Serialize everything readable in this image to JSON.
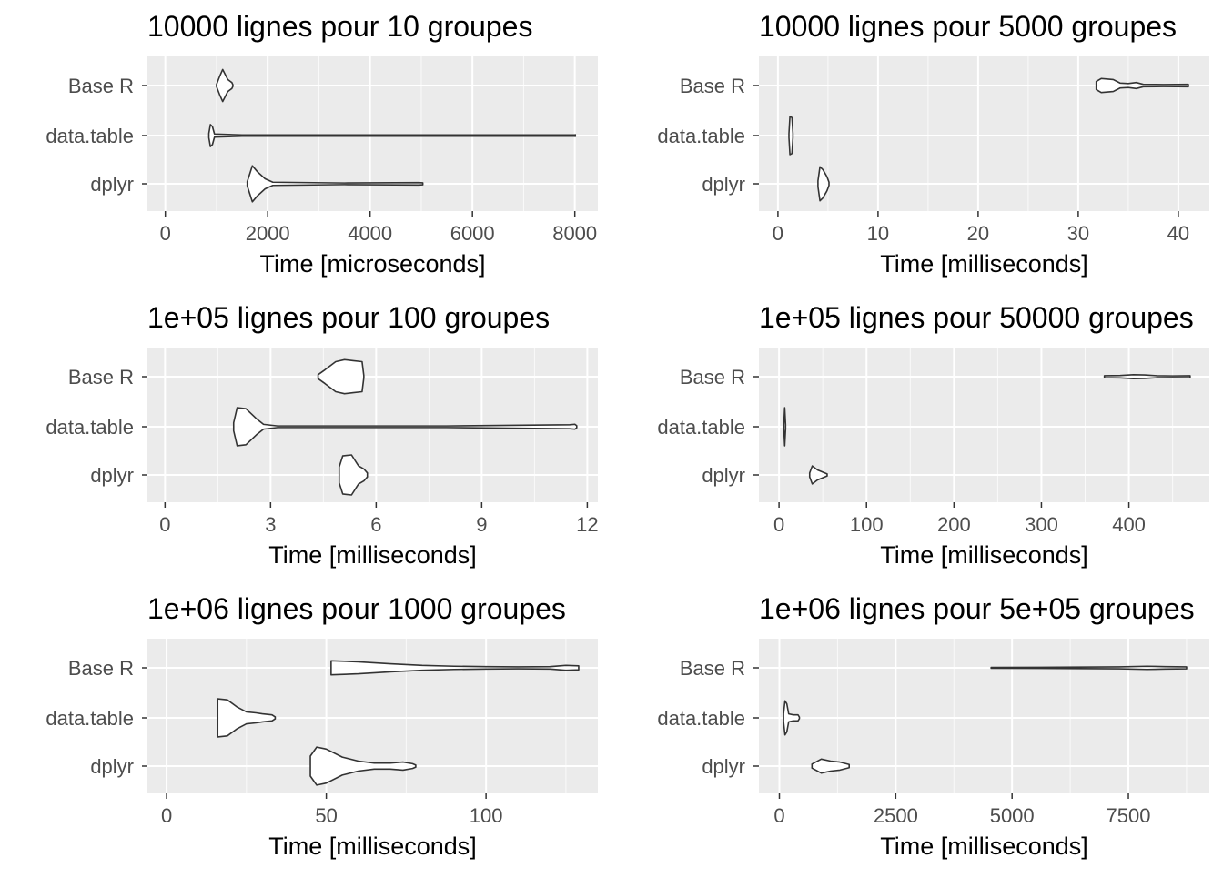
{
  "chart_data": [
    {
      "type": "violin",
      "title": "10000 lignes pour 10 groupes",
      "xlabel": "Time [microseconds]",
      "ylabel": "",
      "xlim": [
        -350,
        8450
      ],
      "xticks": [
        0,
        2000,
        4000,
        6000,
        8000
      ],
      "tick_labels": [
        "0",
        "2000",
        "4000",
        "6000",
        "8000"
      ],
      "categories": [
        "Base R",
        "data.table",
        "dplyr"
      ],
      "series": [
        {
          "name": "Base R",
          "profile": [
            [
              1000,
              0.05
            ],
            [
              1060,
              0.45
            ],
            [
              1120,
              0.8
            ],
            [
              1160,
              0.6
            ],
            [
              1220,
              0.3
            ],
            [
              1300,
              0.15
            ],
            [
              1320,
              0.04
            ]
          ]
        },
        {
          "name": "data.table",
          "profile": [
            [
              850,
              0.1
            ],
            [
              880,
              0.55
            ],
            [
              920,
              0.45
            ],
            [
              960,
              0.08
            ],
            [
              1500,
              0.03
            ],
            [
              4000,
              0.03
            ],
            [
              7990,
              0.03
            ],
            [
              8010,
              0.04
            ]
          ]
        },
        {
          "name": "dplyr",
          "profile": [
            [
              1600,
              0.1
            ],
            [
              1700,
              0.9
            ],
            [
              1800,
              0.6
            ],
            [
              1950,
              0.25
            ],
            [
              2100,
              0.08
            ],
            [
              3500,
              0.04
            ],
            [
              4950,
              0.06
            ],
            [
              5030,
              0.05
            ]
          ]
        }
      ]
    },
    {
      "type": "violin",
      "title": "10000 lignes pour 5000 groupes",
      "xlabel": "Time [milliseconds]",
      "ylabel": "",
      "xlim": [
        -1.9,
        43.1
      ],
      "xticks": [
        0,
        10,
        20,
        30,
        40
      ],
      "tick_labels": [
        "0",
        "10",
        "20",
        "30",
        "40"
      ],
      "categories": [
        "Base R",
        "data.table",
        "dplyr"
      ],
      "series": [
        {
          "name": "Base R",
          "profile": [
            [
              31.8,
              0.2
            ],
            [
              32.3,
              0.35
            ],
            [
              33.5,
              0.3
            ],
            [
              34.2,
              0.12
            ],
            [
              35.0,
              0.1
            ],
            [
              35.8,
              0.15
            ],
            [
              36.5,
              0.06
            ],
            [
              38.5,
              0.05
            ],
            [
              41.0,
              0.06
            ]
          ]
        },
        {
          "name": "data.table",
          "profile": [
            [
              1.1,
              0.1
            ],
            [
              1.2,
              0.95
            ],
            [
              1.4,
              0.9
            ],
            [
              1.5,
              0.1
            ]
          ]
        },
        {
          "name": "dplyr",
          "profile": [
            [
              4.0,
              0.15
            ],
            [
              4.2,
              0.85
            ],
            [
              4.5,
              0.7
            ],
            [
              4.9,
              0.35
            ],
            [
              5.1,
              0.08
            ]
          ]
        }
      ]
    },
    {
      "type": "violin",
      "title": "1e+05 lignes pour 100 groupes",
      "xlabel": "Time [milliseconds]",
      "ylabel": "",
      "xlim": [
        -0.5,
        12.3
      ],
      "xticks": [
        0,
        3,
        6,
        9,
        12
      ],
      "tick_labels": [
        "0",
        "3",
        "6",
        "9",
        "12"
      ],
      "categories": [
        "Base R",
        "data.table",
        "dplyr"
      ],
      "series": [
        {
          "name": "Base R",
          "profile": [
            [
              4.35,
              0.1
            ],
            [
              4.55,
              0.35
            ],
            [
              4.85,
              0.75
            ],
            [
              5.1,
              0.85
            ],
            [
              5.35,
              0.8
            ],
            [
              5.6,
              0.75
            ],
            [
              5.65,
              0.05
            ]
          ]
        },
        {
          "name": "data.table",
          "profile": [
            [
              1.95,
              0.2
            ],
            [
              2.05,
              0.95
            ],
            [
              2.3,
              0.9
            ],
            [
              2.6,
              0.4
            ],
            [
              2.8,
              0.12
            ],
            [
              3.2,
              0.04
            ],
            [
              8.0,
              0.04
            ],
            [
              11.5,
              0.1
            ],
            [
              11.65,
              0.12
            ],
            [
              11.7,
              0.05
            ]
          ]
        },
        {
          "name": "dplyr",
          "profile": [
            [
              4.95,
              0.4
            ],
            [
              5.05,
              0.95
            ],
            [
              5.3,
              1.0
            ],
            [
              5.5,
              0.45
            ],
            [
              5.65,
              0.3
            ],
            [
              5.75,
              0.1
            ]
          ]
        }
      ]
    },
    {
      "type": "violin",
      "title": "1e+05 lignes pour 50000 groupes",
      "xlabel": "Time [milliseconds]",
      "ylabel": "",
      "xlim": [
        -23,
        492
      ],
      "xticks": [
        0,
        100,
        200,
        300,
        400
      ],
      "tick_labels": [
        "0",
        "100",
        "200",
        "300",
        "400"
      ],
      "categories": [
        "Base R",
        "data.table",
        "dplyr"
      ],
      "series": [
        {
          "name": "Base R",
          "profile": [
            [
              372,
              0.05
            ],
            [
              390,
              0.06
            ],
            [
              405,
              0.1
            ],
            [
              418,
              0.09
            ],
            [
              432,
              0.05
            ],
            [
              450,
              0.04
            ],
            [
              470,
              0.05
            ]
          ]
        },
        {
          "name": "data.table",
          "profile": [
            [
              5.5,
              0.1
            ],
            [
              6.5,
              0.95
            ],
            [
              7.5,
              0.1
            ]
          ]
        },
        {
          "name": "dplyr",
          "profile": [
            [
              35,
              0.1
            ],
            [
              38,
              0.45
            ],
            [
              44,
              0.25
            ],
            [
              50,
              0.14
            ],
            [
              55,
              0.05
            ]
          ]
        }
      ]
    },
    {
      "type": "violin",
      "title": "1e+06 lignes pour 1000 groupes",
      "xlabel": "Time [milliseconds]",
      "ylabel": "",
      "xlim": [
        -6,
        135
      ],
      "xticks": [
        0,
        50,
        100
      ],
      "tick_labels": [
        "0",
        "50",
        "100"
      ],
      "categories": [
        "Base R",
        "data.table",
        "dplyr"
      ],
      "series": [
        {
          "name": "Base R",
          "profile": [
            [
              51.5,
              0.35
            ],
            [
              60,
              0.3
            ],
            [
              70,
              0.2
            ],
            [
              80,
              0.12
            ],
            [
              90,
              0.08
            ],
            [
              100,
              0.06
            ],
            [
              110,
              0.05
            ],
            [
              120,
              0.06
            ],
            [
              125,
              0.12
            ],
            [
              129,
              0.1
            ]
          ]
        },
        {
          "name": "data.table",
          "profile": [
            [
              16,
              0.95
            ],
            [
              19,
              0.9
            ],
            [
              22,
              0.55
            ],
            [
              25,
              0.3
            ],
            [
              28,
              0.25
            ],
            [
              30,
              0.2
            ],
            [
              33,
              0.15
            ],
            [
              34,
              0.05
            ]
          ]
        },
        {
          "name": "dplyr",
          "profile": [
            [
              45,
              0.5
            ],
            [
              47,
              0.95
            ],
            [
              50,
              0.85
            ],
            [
              55,
              0.45
            ],
            [
              60,
              0.25
            ],
            [
              65,
              0.15
            ],
            [
              70,
              0.15
            ],
            [
              74,
              0.2
            ],
            [
              77,
              0.12
            ],
            [
              78,
              0.05
            ]
          ]
        }
      ]
    },
    {
      "type": "violin",
      "title": "1e+06 lignes pour 5e+05 groupes",
      "xlabel": "Time [milliseconds]",
      "ylabel": "",
      "xlim": [
        -440,
        9240
      ],
      "xticks": [
        0,
        2500,
        5000,
        7500
      ],
      "tick_labels": [
        "0",
        "2500",
        "5000",
        "7500"
      ],
      "categories": [
        "Base R",
        "data.table",
        "dplyr"
      ],
      "series": [
        {
          "name": "Base R",
          "profile": [
            [
              4550,
              0.02
            ],
            [
              6000,
              0.03
            ],
            [
              7300,
              0.05
            ],
            [
              7900,
              0.08
            ],
            [
              8300,
              0.06
            ],
            [
              8750,
              0.05
            ]
          ]
        },
        {
          "name": "data.table",
          "profile": [
            [
              90,
              0.2
            ],
            [
              120,
              0.85
            ],
            [
              160,
              0.7
            ],
            [
              200,
              0.2
            ],
            [
              300,
              0.15
            ],
            [
              400,
              0.15
            ],
            [
              430,
              0.04
            ]
          ]
        },
        {
          "name": "dplyr",
          "profile": [
            [
              700,
              0.1
            ],
            [
              900,
              0.35
            ],
            [
              1100,
              0.25
            ],
            [
              1300,
              0.2
            ],
            [
              1500,
              0.08
            ]
          ]
        }
      ]
    }
  ]
}
